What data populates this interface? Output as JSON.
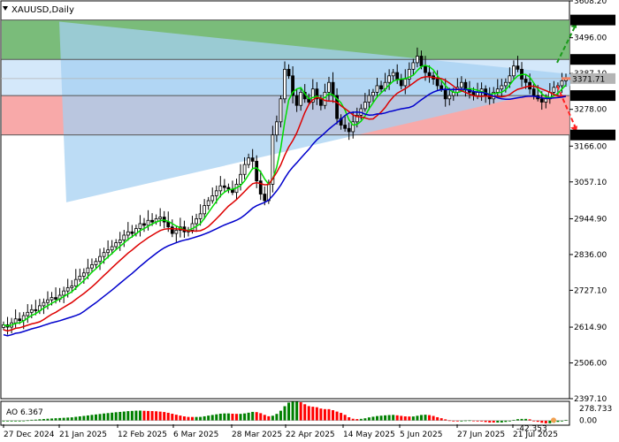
{
  "chart_data": [
    {
      "type": "candlestick",
      "symbol_label": "XAUUSD,Daily",
      "ylim": [
        2397.1,
        3608.2
      ],
      "y_ticks": [
        "3608.20",
        "3496.00",
        "3387.10",
        "3278.00",
        "3166.00",
        "3057.10",
        "2944.90",
        "2836.00",
        "2727.10",
        "2614.90",
        "2506.00",
        "2397.10"
      ],
      "x_ticks": [
        "27 Dec 2024",
        "21 Jan 2025",
        "12 Feb 2025",
        "6 Mar 2025",
        "28 Mar 2025",
        "22 Apr 2025",
        "14 May 2025",
        "5 Jun 2025",
        "27 Jun 2025",
        "21 Jul 2025"
      ],
      "price_levels": [
        {
          "value": 3550.0,
          "label": "3550.00",
          "color": "#000000"
        },
        {
          "value": 3430.0,
          "label": "3430.00",
          "color": "#000000"
        },
        {
          "value": 3371.71,
          "label": "3371.71",
          "color": "#b4b4b4"
        },
        {
          "value": 3320.0,
          "label": "3320.00",
          "color": "#000000"
        },
        {
          "value": 3200.0,
          "label": "3200.00",
          "color": "#000000"
        }
      ],
      "zones": [
        {
          "from": 3430,
          "to": 3550,
          "color": "#6cb56c"
        },
        {
          "from": 3320,
          "to": 3430,
          "color": "#cfe6fa"
        },
        {
          "from": 3200,
          "to": 3320,
          "color": "#f7a0a0"
        }
      ],
      "colors": {
        "ma_fast": "#00dd00",
        "ma_mid": "#dd0000",
        "ma_slow": "#0000cc",
        "triangle": "#a6d0f2",
        "arrow_up": "#1a9a1a",
        "arrow_down": "#ff2020"
      },
      "closes": [
        2622,
        2615,
        2628,
        2640,
        2635,
        2650,
        2660,
        2668,
        2665,
        2680,
        2690,
        2698,
        2705,
        2700,
        2712,
        2725,
        2735,
        2740,
        2760,
        2770,
        2780,
        2795,
        2805,
        2815,
        2830,
        2842,
        2850,
        2860,
        2872,
        2880,
        2895,
        2905,
        2900,
        2915,
        2930,
        2925,
        2940,
        2935,
        2945,
        2950,
        2935,
        2920,
        2900,
        2910,
        2920,
        2905,
        2910,
        2930,
        2945,
        2960,
        2985,
        3000,
        3015,
        3030,
        3045,
        3040,
        3035,
        3025,
        3050,
        3080,
        3110,
        3130,
        3120,
        3060,
        3020,
        3000,
        3050,
        3200,
        3240,
        3310,
        3400,
        3380,
        3320,
        3290,
        3330,
        3310,
        3300,
        3340,
        3310,
        3290,
        3330,
        3360,
        3320,
        3250,
        3230,
        3220,
        3210,
        3240,
        3260,
        3280,
        3300,
        3320,
        3330,
        3350,
        3340,
        3360,
        3380,
        3390,
        3370,
        3350,
        3370,
        3400,
        3420,
        3440,
        3410,
        3390,
        3380,
        3370,
        3350,
        3340,
        3310,
        3320,
        3330,
        3345,
        3360,
        3340,
        3330,
        3320,
        3330,
        3340,
        3320,
        3310,
        3330,
        3340,
        3350,
        3360,
        3380,
        3410,
        3400,
        3370,
        3360,
        3340,
        3320,
        3310,
        3300,
        3310,
        3330,
        3345,
        3350,
        3365,
        3371.71
      ]
    },
    {
      "type": "bar",
      "indicator_label": "AO 6.367",
      "last_value": 6.367,
      "ylim": [
        -42.353,
        278.733
      ],
      "y_ticks": [
        "278.733",
        "0.00"
      ],
      "current_value_label": "-42.353",
      "colors": {
        "up": "#008000",
        "down": "#ff0000"
      }
    }
  ]
}
